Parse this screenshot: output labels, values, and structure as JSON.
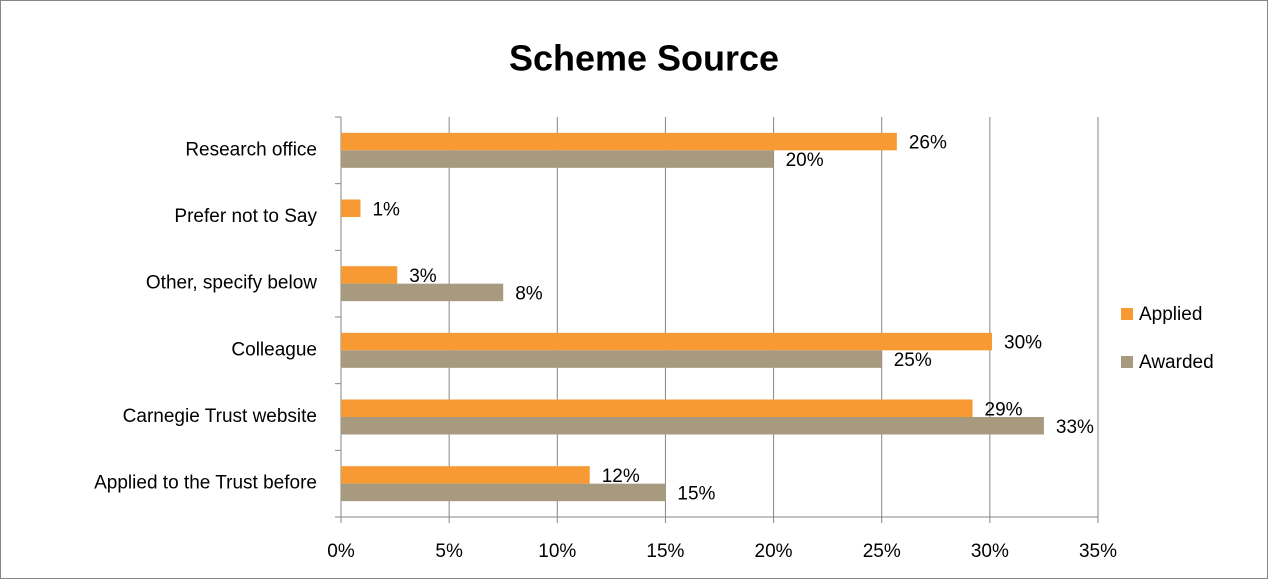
{
  "chart_data": {
    "type": "bar",
    "orientation": "horizontal",
    "title": "Scheme Source",
    "categories": [
      "Research office",
      "Prefer not to Say",
      "Other, specify below",
      "Colleague",
      "Carnegie Trust website",
      "Applied to the Trust before"
    ],
    "series": [
      {
        "name": "Applied",
        "color": "#f79a33",
        "values": [
          25.7,
          0.9,
          2.6,
          30.1,
          29.2,
          11.5
        ],
        "value_labels": [
          "26%",
          "1%",
          "3%",
          "30%",
          "29%",
          "12%"
        ]
      },
      {
        "name": "Awarded",
        "color": "#a89a7e",
        "values": [
          20,
          null,
          7.5,
          25,
          32.5,
          15
        ],
        "value_labels": [
          "20%",
          null,
          "8%",
          "25%",
          "33%",
          "15%"
        ]
      }
    ],
    "xlim": [
      0,
      35
    ],
    "xticks": [
      {
        "value": 0,
        "label": "0%"
      },
      {
        "value": 5,
        "label": "5%"
      },
      {
        "value": 10,
        "label": "10%"
      },
      {
        "value": 15,
        "label": "15%"
      },
      {
        "value": 20,
        "label": "20%"
      },
      {
        "value": 25,
        "label": "25%"
      },
      {
        "value": 30,
        "label": "30%"
      },
      {
        "value": 35,
        "label": "35%"
      }
    ],
    "grid": true,
    "legend": "right"
  }
}
